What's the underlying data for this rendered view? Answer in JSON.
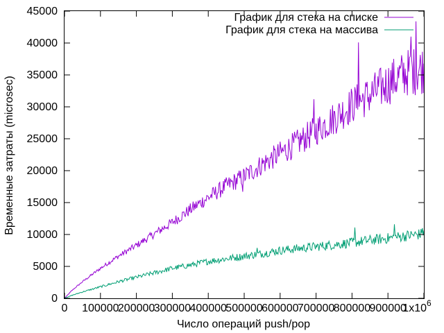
{
  "chart_data": {
    "type": "line",
    "title": "",
    "xlabel": "Число операций push/pop",
    "ylabel": "Временные затраты (microsec)",
    "xlim": [
      0,
      1000000
    ],
    "ylim": [
      0,
      45000
    ],
    "grid": false,
    "legend_position": "top-right",
    "x_ticks": [
      0,
      100000,
      200000,
      300000,
      400000,
      500000,
      600000,
      700000,
      800000,
      900000,
      1000000
    ],
    "x_tick_labels": [
      "0",
      "100000",
      "200000",
      "300000",
      "400000",
      "500000",
      "600000",
      "700000",
      "800000",
      "900000",
      "1x10"
    ],
    "x_exponent_label": "6",
    "y_ticks": [
      0,
      5000,
      10000,
      15000,
      20000,
      25000,
      30000,
      35000,
      40000,
      45000
    ],
    "y_tick_labels": [
      "0",
      "5000",
      "10000",
      "15000",
      "20000",
      "25000",
      "30000",
      "35000",
      "40000",
      "45000"
    ],
    "series": [
      {
        "name": "График для стека на списке",
        "color": "#9400d3",
        "x": [
          0,
          20000,
          50000,
          100000,
          150000,
          200000,
          250000,
          300000,
          350000,
          400000,
          450000,
          500000,
          550000,
          600000,
          650000,
          700000,
          750000,
          800000,
          850000,
          900000,
          950000,
          1000000
        ],
        "y": [
          0,
          1200,
          2600,
          4700,
          6600,
          8300,
          10100,
          11900,
          13900,
          15800,
          17600,
          19100,
          21000,
          22700,
          24400,
          26300,
          28200,
          30300,
          31800,
          33700,
          35300,
          36000
        ],
        "spikes": [
          {
            "x": 495000,
            "y": 16700
          },
          {
            "x": 693000,
            "y": 31200
          },
          {
            "x": 818000,
            "y": 40100
          },
          {
            "x": 963000,
            "y": 41000
          },
          {
            "x": 978000,
            "y": 43400
          }
        ]
      },
      {
        "name": "График для стека на массива",
        "color": "#009e73",
        "x": [
          0,
          20000,
          50000,
          100000,
          150000,
          200000,
          250000,
          300000,
          350000,
          400000,
          450000,
          500000,
          550000,
          600000,
          650000,
          700000,
          750000,
          800000,
          850000,
          900000,
          950000,
          1000000
        ],
        "y": [
          0,
          450,
          1000,
          1800,
          2600,
          3300,
          4000,
          4700,
          5200,
          5800,
          6200,
          6600,
          7000,
          7500,
          7800,
          8100,
          8400,
          8700,
          9100,
          9400,
          9800,
          10100
        ],
        "spikes": [
          {
            "x": 535000,
            "y": 7900
          },
          {
            "x": 808000,
            "y": 11100
          },
          {
            "x": 918000,
            "y": 11600
          },
          {
            "x": 995000,
            "y": 11000
          }
        ]
      }
    ]
  }
}
